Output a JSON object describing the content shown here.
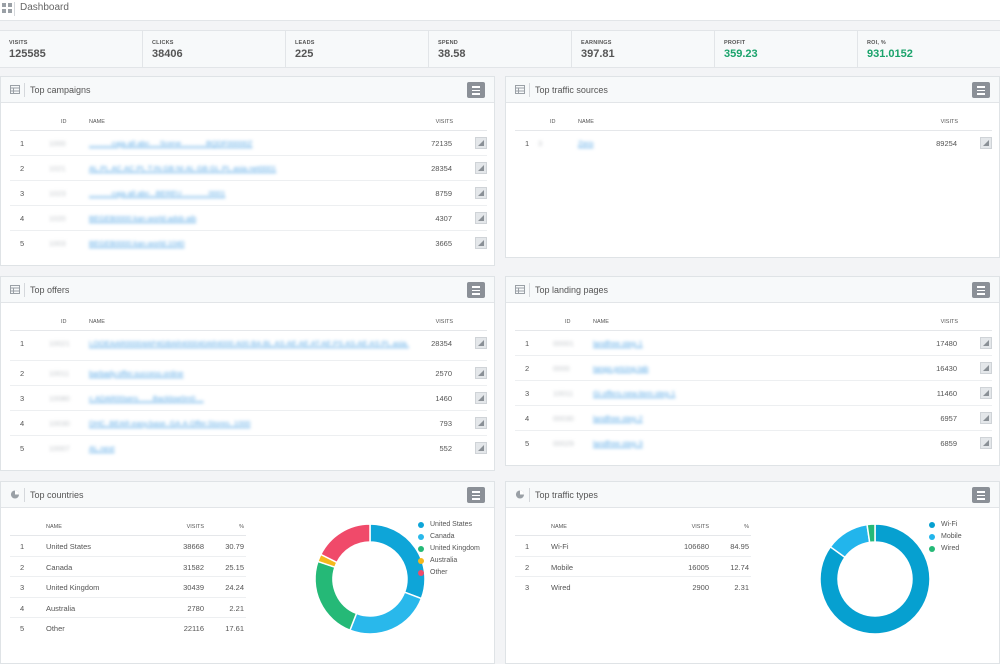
{
  "header": {
    "title": "Dashboard"
  },
  "stats": [
    {
      "label": "VISITS",
      "value": "125585",
      "green": false
    },
    {
      "label": "CLICKS",
      "value": "38406",
      "green": false
    },
    {
      "label": "LEADS",
      "value": "225",
      "green": false
    },
    {
      "label": "SPEND",
      "value": "38.58",
      "green": false
    },
    {
      "label": "EARNINGS",
      "value": "397.81",
      "green": false
    },
    {
      "label": "PROFIT",
      "value": "359.23",
      "green": true
    },
    {
      "label": "ROI, %",
      "value": "931.0152",
      "green": true
    }
  ],
  "cols": {
    "id": "ID",
    "name": "NAME",
    "visits": "VISITS",
    "pct": "%"
  },
  "campaigns": {
    "title": "Top campaigns",
    "rows": [
      {
        "n": "1",
        "id": "1000",
        "name": "...........caja.all.abc.....Scene............BQDF00000Z",
        "visits": "72135"
      },
      {
        "n": "2",
        "id": "1021",
        "name": "AL.PL.AC.AC.PL.T.IN.GB.NI.AL.GB.GL.PL.asia.net0001",
        "visits": "28354"
      },
      {
        "n": "3",
        "id": "1023",
        "name": "...........caja.all.abc...BEREU.............0001",
        "visits": "8759"
      },
      {
        "n": "4",
        "id": "1020",
        "name": "BEGEB0000.kan.world.adsb.aib",
        "visits": "4307"
      },
      {
        "n": "5",
        "id": "1003",
        "name": "BEGEB0000.kan.world.1040",
        "visits": "3665"
      }
    ]
  },
  "sources": {
    "title": "Top traffic sources",
    "rows": [
      {
        "n": "1",
        "id": "3",
        "name": "Zero",
        "visits": "89254"
      }
    ]
  },
  "offers": {
    "title": "Top offers",
    "rows": [
      {
        "n": "1",
        "id": "10021",
        "name": "LOOEAAR00004AP4GBAR400040AR4000.A00.BA.BL.AS.AE.AE.AT.AE.PS.AS.AE.AS.PL.asia.100000",
        "visits": "28354"
      },
      {
        "n": "2",
        "id": "10011",
        "name": "barbady.offer.success.online",
        "visits": "2570"
      },
      {
        "n": "3",
        "id": "10080",
        "name": "c.ADAR00sers.......Backlow0m0....",
        "visits": "1460"
      },
      {
        "n": "4",
        "id": "10030",
        "name": "DHC..BEAR.easy.base..GA.A.Offer.Stores..1000",
        "visits": "793"
      },
      {
        "n": "5",
        "id": "10007",
        "name": "AL.next",
        "visits": "552"
      }
    ]
  },
  "landers": {
    "title": "Top landing pages",
    "rows": [
      {
        "n": "1",
        "id": "00001",
        "name": "landfree.step.1",
        "visits": "17480"
      },
      {
        "n": "2",
        "id": "0000",
        "name": "tango.pricing.tab",
        "visits": "16430"
      },
      {
        "n": "3",
        "id": "10011",
        "name": "Gi.offers.new.item.step.1",
        "visits": "11460"
      },
      {
        "n": "4",
        "id": "00030",
        "name": "landfree.step.2",
        "visits": "6957"
      },
      {
        "n": "5",
        "id": "00029",
        "name": "landfree.step.3",
        "visits": "6859"
      }
    ]
  },
  "countries": {
    "title": "Top countries",
    "rows": [
      {
        "n": "1",
        "name": "United States",
        "visits": "38668",
        "pct": "30.79",
        "color": "#0ea5d8"
      },
      {
        "n": "2",
        "name": "Canada",
        "visits": "31582",
        "pct": "25.15",
        "color": "#29b8eb"
      },
      {
        "n": "3",
        "name": "United Kingdom",
        "visits": "30439",
        "pct": "24.24",
        "color": "#25b977"
      },
      {
        "n": "4",
        "name": "Australia",
        "visits": "2780",
        "pct": "2.21",
        "color": "#f5b81c"
      },
      {
        "n": "5",
        "name": "Other",
        "visits": "22116",
        "pct": "17.61",
        "color": "#f04a6a"
      }
    ]
  },
  "types": {
    "title": "Top traffic types",
    "rows": [
      {
        "n": "1",
        "name": "Wi-Fi",
        "visits": "106680",
        "pct": "84.95",
        "color": "#06a0d0"
      },
      {
        "n": "2",
        "name": "Mobile",
        "visits": "16005",
        "pct": "12.74",
        "color": "#22b5ec"
      },
      {
        "n": "3",
        "name": "Wired",
        "visits": "2900",
        "pct": "2.31",
        "color": "#25b977"
      }
    ]
  },
  "chart_data": [
    {
      "type": "pie",
      "title": "Top countries",
      "categories": [
        "United States",
        "Canada",
        "United Kingdom",
        "Australia",
        "Other"
      ],
      "values": [
        30.79,
        25.15,
        24.24,
        2.21,
        17.61
      ],
      "legend": "top-right"
    },
    {
      "type": "pie",
      "title": "Top traffic types",
      "categories": [
        "Wi-Fi",
        "Mobile",
        "Wired"
      ],
      "values": [
        84.95,
        12.74,
        2.31
      ],
      "legend": "top-right"
    }
  ]
}
